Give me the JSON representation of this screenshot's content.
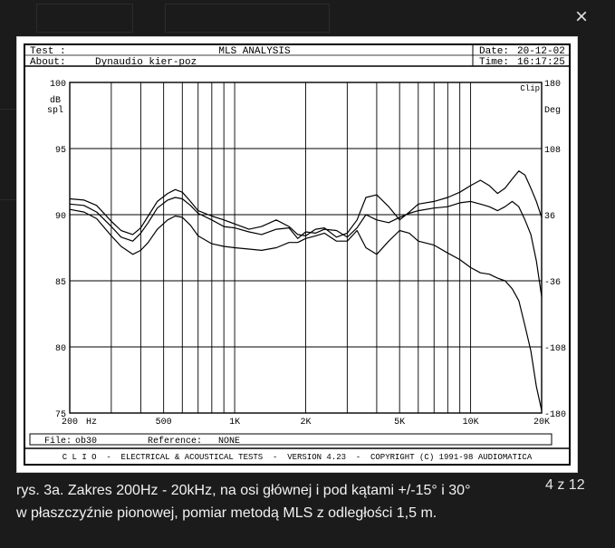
{
  "lightbox": {
    "close_glyph": "×",
    "caption_line1": "rys. 3a. Zakres 200Hz - 20kHz, na osi głównej i pod kątami +/-15° i 30°",
    "caption_line2": "w płaszczyźnie pionowej, pomiar metodą MLS z odległości 1,5 m.",
    "counter": "4 z 12"
  },
  "header": {
    "test_label": "Test :",
    "title": "MLS ANALYSIS",
    "date_label": "Date:",
    "date": "20-12-02",
    "about_label": "About:",
    "about": "Dynaudio kier-poz",
    "time_label": "Time:",
    "time": "16:17:25"
  },
  "footer": {
    "file_label": "File:",
    "file": "ob30",
    "reference_label": "Reference:",
    "reference": "NONE",
    "banner": "C L I O  -  ELECTRICAL & ACOUSTICAL TESTS  -  VERSION 4.23  -  COPYRIGHT (C) 1991-98 AUDIOMATICA"
  },
  "chart_data": {
    "type": "line",
    "title": "MLS ANALYSIS",
    "xscale": "log",
    "xlim": [
      200,
      20000
    ],
    "ylim": [
      75,
      100
    ],
    "y2lim": [
      -180,
      180
    ],
    "grid": true,
    "ylabel": "dB spl",
    "y2label": "Deg",
    "x_unit": "Hz",
    "corner_label": "Clip",
    "x_ticks": [
      {
        "value": 200,
        "label": "200"
      },
      {
        "value": 500,
        "label": "500"
      },
      {
        "value": 1000,
        "label": "1K"
      },
      {
        "value": 2000,
        "label": "2K"
      },
      {
        "value": 5000,
        "label": "5K"
      },
      {
        "value": 10000,
        "label": "10K"
      },
      {
        "value": 20000,
        "label": "20K"
      }
    ],
    "x_gridlines": [
      200,
      300,
      400,
      500,
      600,
      700,
      800,
      900,
      1000,
      2000,
      3000,
      4000,
      5000,
      6000,
      7000,
      8000,
      9000,
      10000,
      20000
    ],
    "y_ticks": [
      {
        "value": 100,
        "label": "100"
      },
      {
        "value": 95,
        "label": "95"
      },
      {
        "value": 90,
        "label": "90"
      },
      {
        "value": 85,
        "label": "85"
      },
      {
        "value": 80,
        "label": "80"
      },
      {
        "value": 75,
        "label": "75"
      }
    ],
    "y2_ticks": [
      {
        "value": 180,
        "label": "180"
      },
      {
        "value": 108,
        "label": "108"
      },
      {
        "value": 36,
        "label": "36"
      },
      {
        "value": -36,
        "label": "-36"
      },
      {
        "value": -108,
        "label": "-108"
      },
      {
        "value": -180,
        "label": "-180"
      }
    ],
    "series": [
      {
        "x": [
          200,
          230,
          260,
          300,
          330,
          370,
          400,
          430,
          470,
          520,
          560,
          600,
          650,
          700,
          800,
          900,
          1000,
          1150,
          1300,
          1500,
          1700,
          1850,
          2000,
          2200,
          2400,
          2700,
          3000,
          3300,
          3600,
          4000,
          4500,
          5000,
          5500,
          6000,
          7000,
          8000,
          9000,
          10000,
          11000,
          12000,
          13000,
          14000,
          15000,
          16000,
          17000,
          18000,
          19000,
          20000
        ],
        "y": [
          91.2,
          91.1,
          90.7,
          89.5,
          88.8,
          88.5,
          89.0,
          89.9,
          91.0,
          91.6,
          91.9,
          91.7,
          91.0,
          90.3,
          89.9,
          89.6,
          89.3,
          88.9,
          89.1,
          89.6,
          89.1,
          88.5,
          88.4,
          88.9,
          89.0,
          88.3,
          88.6,
          89.6,
          91.3,
          91.5,
          90.6,
          89.6,
          90.2,
          90.8,
          91.0,
          91.3,
          91.7,
          92.2,
          92.6,
          92.2,
          91.6,
          92.0,
          92.7,
          93.3,
          93.0,
          92.0,
          91.0,
          89.8
        ]
      },
      {
        "x": [
          200,
          230,
          260,
          300,
          330,
          370,
          400,
          430,
          470,
          520,
          560,
          600,
          650,
          700,
          800,
          900,
          1000,
          1150,
          1300,
          1500,
          1700,
          1850,
          2000,
          2200,
          2400,
          2700,
          3000,
          3300,
          3600,
          4000,
          4500,
          5000,
          5500,
          6000,
          7000,
          8000,
          9000,
          10000,
          11000,
          12000,
          13000,
          14000,
          15000,
          16000,
          17000,
          18000,
          19000,
          20000
        ],
        "y": [
          90.8,
          90.7,
          90.2,
          89.1,
          88.3,
          88.0,
          88.6,
          89.4,
          90.5,
          91.1,
          91.3,
          91.2,
          90.7,
          90.1,
          89.6,
          89.1,
          89.0,
          88.7,
          88.5,
          88.9,
          89.0,
          88.2,
          88.7,
          88.6,
          88.9,
          88.8,
          88.3,
          89.0,
          90.0,
          89.6,
          89.4,
          89.8,
          90.1,
          90.3,
          90.5,
          90.6,
          90.9,
          91.0,
          90.8,
          90.6,
          90.3,
          90.6,
          91.0,
          90.6,
          89.6,
          88.5,
          86.5,
          83.8
        ]
      },
      {
        "x": [
          200,
          230,
          260,
          300,
          330,
          370,
          400,
          430,
          470,
          520,
          560,
          600,
          650,
          700,
          800,
          900,
          1000,
          1150,
          1300,
          1500,
          1700,
          1850,
          2000,
          2200,
          2400,
          2700,
          3000,
          3300,
          3600,
          4000,
          4500,
          5000,
          5500,
          6000,
          7000,
          8000,
          9000,
          10000,
          11000,
          12000,
          13000,
          14000,
          15000,
          16000,
          17000,
          18000,
          19000,
          20000
        ],
        "y": [
          90.4,
          90.2,
          89.7,
          88.4,
          87.6,
          87.0,
          87.3,
          87.9,
          88.9,
          89.6,
          89.9,
          89.8,
          89.2,
          88.4,
          87.8,
          87.6,
          87.5,
          87.4,
          87.3,
          87.5,
          87.9,
          87.9,
          88.2,
          88.4,
          88.6,
          88.0,
          88.0,
          88.8,
          87.5,
          87.0,
          88.0,
          88.8,
          88.6,
          88.0,
          87.7,
          87.1,
          86.6,
          86.0,
          85.6,
          85.5,
          85.2,
          85.0,
          84.4,
          83.5,
          81.6,
          79.7,
          77.0,
          75.2
        ]
      }
    ]
  }
}
